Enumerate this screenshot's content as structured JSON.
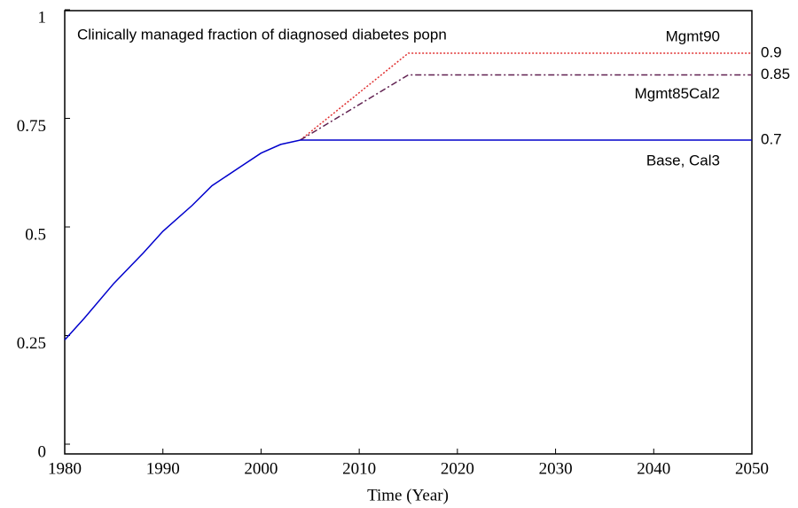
{
  "chart_data": {
    "type": "line",
    "title": "Clinically managed fraction of diagnosed diabetes popn",
    "x_label": "Time (Year)",
    "xlim": [
      1980,
      2050
    ],
    "xticks": [
      1980,
      1990,
      2000,
      2010,
      2020,
      2030,
      2040,
      2050
    ],
    "ylim": [
      0,
      1
    ],
    "yticks": [
      0,
      0.25,
      0.5,
      0.75,
      1
    ],
    "series": [
      {
        "name": "Mgmt90",
        "color": "#e03030",
        "dash": "dotted",
        "x": [
          2004,
          2015,
          2050
        ],
        "values": [
          0.7,
          0.9,
          0.9
        ]
      },
      {
        "name": "Mgmt85Cal2",
        "color": "#602050",
        "dash": "dashdot",
        "x": [
          2004,
          2015,
          2050
        ],
        "values": [
          0.7,
          0.85,
          0.85
        ]
      },
      {
        "name": "Base, Cal3",
        "color": "#0000cc",
        "dash": "solid",
        "x": [
          1980,
          1982,
          1985,
          1988,
          1990,
          1993,
          1995,
          1998,
          2000,
          2002,
          2004,
          2050
        ],
        "values": [
          0.24,
          0.29,
          0.37,
          0.44,
          0.49,
          0.55,
          0.595,
          0.64,
          0.67,
          0.69,
          0.7,
          0.7
        ]
      }
    ]
  }
}
